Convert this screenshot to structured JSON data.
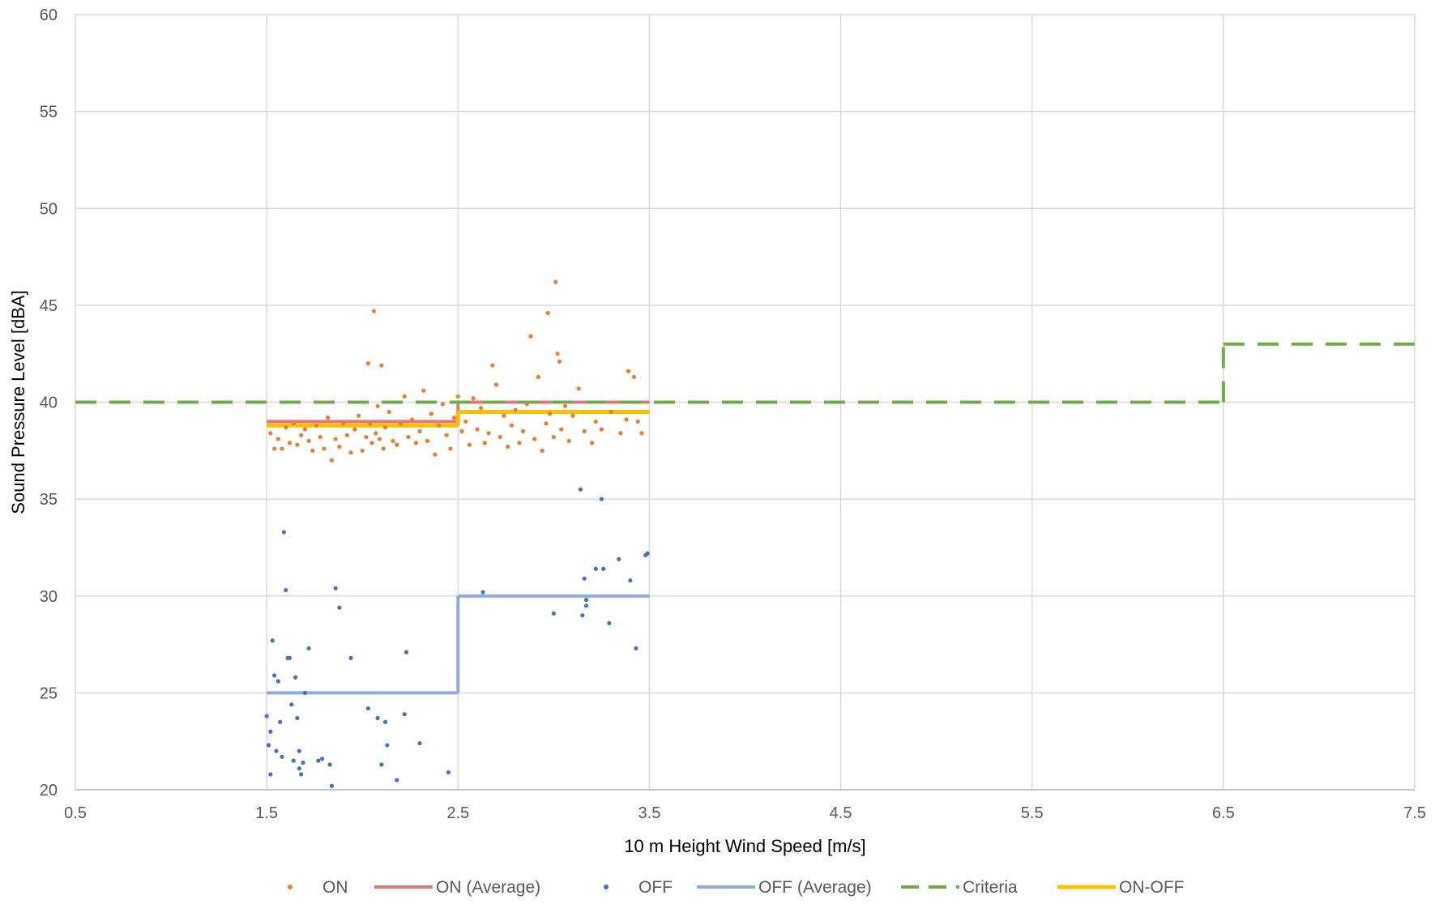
{
  "chart_data": {
    "type": "scatter",
    "title": "",
    "xlabel": "10 m Height Wind Speed [m/s]",
    "ylabel": "Sound Pressure Level [dBA]",
    "xlim": [
      0.5,
      7.5
    ],
    "ylim": [
      20,
      60
    ],
    "xticks": [
      "0.5",
      "1.5",
      "2.5",
      "3.5",
      "4.5",
      "5.5",
      "6.5",
      "7.5"
    ],
    "yticks": [
      "20",
      "25",
      "30",
      "35",
      "40",
      "45",
      "50",
      "55",
      "60"
    ],
    "grid": true,
    "legend": "bottom",
    "series": [
      {
        "name": "ON",
        "kind": "scatter",
        "color": "#ed7d31",
        "points": [
          [
            1.52,
            38.4
          ],
          [
            1.54,
            37.6
          ],
          [
            1.56,
            38.1
          ],
          [
            1.58,
            37.6
          ],
          [
            1.6,
            38.7
          ],
          [
            1.62,
            37.9
          ],
          [
            1.64,
            38.9
          ],
          [
            1.66,
            37.8
          ],
          [
            1.68,
            38.3
          ],
          [
            1.7,
            38.6
          ],
          [
            1.72,
            38.0
          ],
          [
            1.74,
            37.5
          ],
          [
            1.76,
            38.8
          ],
          [
            1.78,
            38.2
          ],
          [
            1.8,
            37.6
          ],
          [
            1.82,
            39.2
          ],
          [
            1.84,
            37.0
          ],
          [
            1.86,
            38.1
          ],
          [
            1.88,
            37.7
          ],
          [
            1.9,
            38.9
          ],
          [
            1.92,
            38.3
          ],
          [
            1.94,
            37.4
          ],
          [
            1.96,
            38.6
          ],
          [
            1.98,
            39.3
          ],
          [
            2.0,
            37.5
          ],
          [
            2.02,
            38.2
          ],
          [
            2.03,
            42.0
          ],
          [
            2.04,
            38.9
          ],
          [
            2.05,
            37.9
          ],
          [
            2.06,
            44.7
          ],
          [
            2.07,
            38.4
          ],
          [
            2.08,
            39.8
          ],
          [
            2.09,
            38.1
          ],
          [
            2.1,
            41.9
          ],
          [
            2.11,
            37.6
          ],
          [
            2.12,
            38.7
          ],
          [
            2.14,
            39.5
          ],
          [
            2.16,
            38.0
          ],
          [
            2.18,
            37.8
          ],
          [
            2.2,
            38.9
          ],
          [
            2.22,
            40.3
          ],
          [
            2.24,
            38.2
          ],
          [
            2.26,
            39.1
          ],
          [
            2.28,
            37.9
          ],
          [
            2.3,
            38.5
          ],
          [
            2.32,
            40.6
          ],
          [
            2.34,
            38.0
          ],
          [
            2.36,
            39.4
          ],
          [
            2.38,
            37.3
          ],
          [
            2.4,
            38.8
          ],
          [
            2.42,
            39.9
          ],
          [
            2.44,
            38.3
          ],
          [
            2.46,
            37.6
          ],
          [
            2.48,
            39.2
          ],
          [
            2.5,
            40.3
          ],
          [
            2.52,
            38.5
          ],
          [
            2.54,
            39.0
          ],
          [
            2.56,
            37.8
          ],
          [
            2.58,
            40.2
          ],
          [
            2.6,
            38.6
          ],
          [
            2.62,
            39.7
          ],
          [
            2.64,
            37.9
          ],
          [
            2.66,
            38.4
          ],
          [
            2.68,
            41.9
          ],
          [
            2.7,
            40.9
          ],
          [
            2.72,
            38.2
          ],
          [
            2.74,
            39.3
          ],
          [
            2.76,
            37.7
          ],
          [
            2.78,
            38.8
          ],
          [
            2.8,
            39.6
          ],
          [
            2.82,
            37.9
          ],
          [
            2.84,
            38.5
          ],
          [
            2.86,
            39.9
          ],
          [
            2.88,
            43.4
          ],
          [
            2.9,
            38.1
          ],
          [
            2.92,
            41.3
          ],
          [
            2.94,
            37.5
          ],
          [
            2.96,
            38.9
          ],
          [
            2.97,
            44.6
          ],
          [
            2.98,
            39.4
          ],
          [
            3.0,
            38.2
          ],
          [
            3.01,
            46.2
          ],
          [
            3.02,
            42.5
          ],
          [
            3.03,
            42.1
          ],
          [
            3.04,
            38.6
          ],
          [
            3.06,
            39.8
          ],
          [
            3.08,
            38.0
          ],
          [
            3.1,
            39.3
          ],
          [
            3.13,
            40.7
          ],
          [
            3.16,
            38.5
          ],
          [
            3.2,
            37.9
          ],
          [
            3.22,
            39.0
          ],
          [
            3.25,
            38.6
          ],
          [
            3.3,
            39.5
          ],
          [
            3.35,
            38.4
          ],
          [
            3.38,
            39.1
          ],
          [
            3.39,
            41.6
          ],
          [
            3.42,
            41.3
          ],
          [
            3.44,
            39.0
          ],
          [
            3.46,
            38.4
          ]
        ]
      },
      {
        "name": "ON (Average)",
        "kind": "step",
        "color": "#e07878",
        "segments": [
          [
            1.5,
            2.5,
            39.0
          ],
          [
            2.5,
            3.5,
            40.0
          ]
        ]
      },
      {
        "name": "OFF",
        "kind": "scatter",
        "color": "#4472c4",
        "points": [
          [
            1.5,
            23.8
          ],
          [
            1.51,
            22.3
          ],
          [
            1.52,
            20.8
          ],
          [
            1.52,
            23.0
          ],
          [
            1.53,
            27.7
          ],
          [
            1.54,
            25.9
          ],
          [
            1.55,
            22.0
          ],
          [
            1.56,
            25.6
          ],
          [
            1.57,
            23.5
          ],
          [
            1.58,
            21.7
          ],
          [
            1.59,
            33.3
          ],
          [
            1.6,
            30.3
          ],
          [
            1.61,
            26.8
          ],
          [
            1.62,
            26.8
          ],
          [
            1.63,
            24.4
          ],
          [
            1.64,
            21.5
          ],
          [
            1.65,
            25.8
          ],
          [
            1.66,
            23.7
          ],
          [
            1.67,
            22.0
          ],
          [
            1.67,
            21.1
          ],
          [
            1.68,
            20.8
          ],
          [
            1.69,
            21.4
          ],
          [
            1.7,
            25.0
          ],
          [
            1.72,
            27.3
          ],
          [
            1.77,
            21.5
          ],
          [
            1.79,
            21.6
          ],
          [
            1.83,
            21.3
          ],
          [
            1.84,
            20.2
          ],
          [
            1.86,
            30.4
          ],
          [
            1.88,
            29.4
          ],
          [
            1.94,
            26.8
          ],
          [
            2.03,
            24.2
          ],
          [
            2.08,
            23.7
          ],
          [
            2.1,
            21.3
          ],
          [
            2.12,
            23.5
          ],
          [
            2.13,
            22.3
          ],
          [
            2.18,
            20.5
          ],
          [
            2.22,
            23.9
          ],
          [
            2.23,
            27.1
          ],
          [
            2.3,
            22.4
          ],
          [
            2.45,
            20.9
          ],
          [
            2.63,
            30.2
          ],
          [
            3.0,
            29.1
          ],
          [
            3.14,
            35.5
          ],
          [
            3.15,
            29.0
          ],
          [
            3.16,
            30.9
          ],
          [
            3.17,
            29.8
          ],
          [
            3.17,
            29.5
          ],
          [
            3.22,
            31.4
          ],
          [
            3.25,
            35.0
          ],
          [
            3.26,
            31.4
          ],
          [
            3.29,
            28.6
          ],
          [
            3.34,
            31.9
          ],
          [
            3.4,
            30.8
          ],
          [
            3.43,
            27.3
          ],
          [
            3.48,
            32.1
          ],
          [
            3.49,
            32.2
          ]
        ]
      },
      {
        "name": "OFF (Average)",
        "kind": "step",
        "color": "#8faadc",
        "segments": [
          [
            1.5,
            2.5,
            25.0
          ],
          [
            2.5,
            3.5,
            30.0
          ]
        ]
      },
      {
        "name": "Criteria",
        "kind": "dashed-step",
        "color": "#70ad47",
        "segments": [
          [
            0.5,
            6.5,
            40.0
          ],
          [
            6.5,
            7.5,
            43.0
          ]
        ]
      },
      {
        "name": "ON-OFF",
        "kind": "step",
        "color": "#ffc000",
        "segments": [
          [
            1.5,
            2.5,
            38.8
          ],
          [
            2.5,
            3.5,
            39.5
          ]
        ]
      }
    ]
  }
}
